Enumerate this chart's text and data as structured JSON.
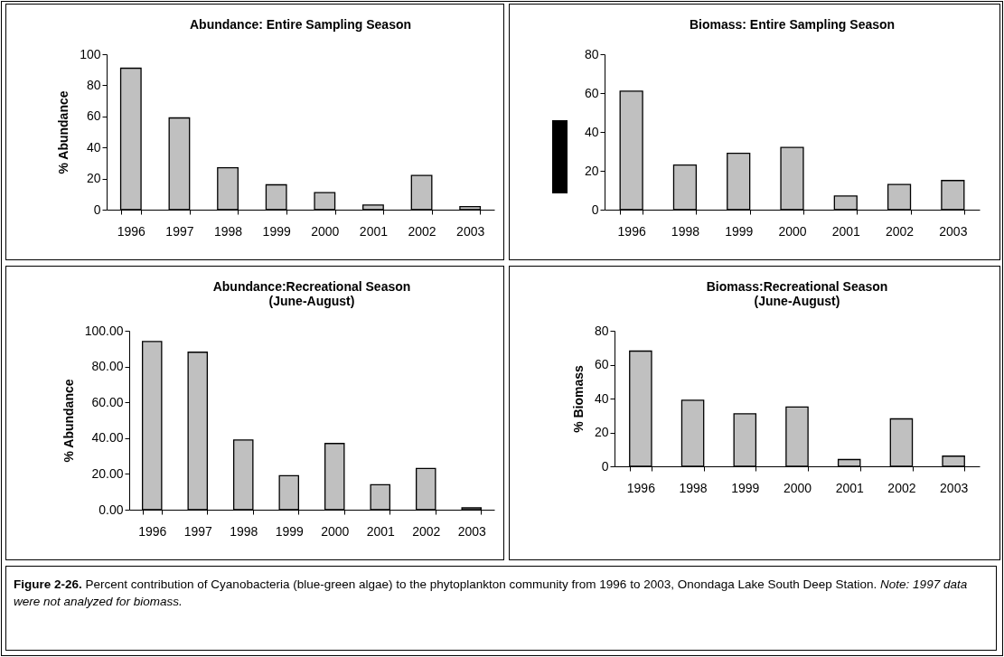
{
  "chart_data": [
    {
      "type": "bar",
      "title": "Abundance: Entire Sampling Season",
      "ylabel": "% Abundance",
      "categories": [
        "1996",
        "1997",
        "1998",
        "1999",
        "2000",
        "2001",
        "2002",
        "2003"
      ],
      "values": [
        91,
        59,
        27,
        16,
        11,
        3,
        22,
        2
      ],
      "color": "#c0c0c0",
      "ylim": [
        0,
        100
      ],
      "yticks": [
        0,
        20,
        40,
        60,
        80,
        100
      ],
      "grid": false
    },
    {
      "type": "bar",
      "title": "Biomass: Entire Sampling Season",
      "categories": [
        "1996",
        "1998",
        "1999",
        "2000",
        "2001",
        "2002",
        "2003"
      ],
      "values": [
        61,
        23,
        29,
        32,
        7,
        13,
        15
      ],
      "color": "#c0c0c0",
      "ylim": [
        0,
        80
      ],
      "yticks": [
        0,
        20,
        40,
        60,
        80
      ],
      "grid": false
    },
    {
      "type": "bar",
      "title": "Abundance:Recreational Season",
      "subtitle": "(June-August)",
      "ylabel": "% Abundance",
      "categories": [
        "1996",
        "1997",
        "1998",
        "1999",
        "2000",
        "2001",
        "2002",
        "2003"
      ],
      "values": [
        94,
        88,
        39,
        19,
        37,
        14,
        23,
        1
      ],
      "color": "#c0c0c0",
      "ylim": [
        0,
        100
      ],
      "yticks": [
        {
          "value": 0,
          "label": "0.00"
        },
        {
          "value": 20,
          "label": "20.00"
        },
        {
          "value": 40,
          "label": "40.00"
        },
        {
          "value": 60,
          "label": "60.00"
        },
        {
          "value": 80,
          "label": "80.00"
        },
        {
          "value": 100,
          "label": "100.00"
        }
      ],
      "grid": false
    },
    {
      "type": "bar",
      "title": "Biomass:Recreational Season",
      "subtitle": "(June-August)",
      "ylabel": "% Biomass",
      "categories": [
        "1996",
        "1998",
        "1999",
        "2000",
        "2001",
        "2002",
        "2003"
      ],
      "values": [
        68,
        39,
        31,
        35,
        4,
        28,
        6
      ],
      "color": "#c0c0c0",
      "ylim": [
        0,
        80
      ],
      "yticks": [
        0,
        20,
        40,
        60,
        80
      ],
      "grid": false,
      "annotations": [
        "Figure 2-26.",
        "Percent contribution of Cyanobacteria (blue-green algae) to the phytoplankton community from 1996 to 2003, Onondaga Lake South Deep Station.",
        "Note: 1997 data were not analyzed for biomass."
      ]
    }
  ]
}
